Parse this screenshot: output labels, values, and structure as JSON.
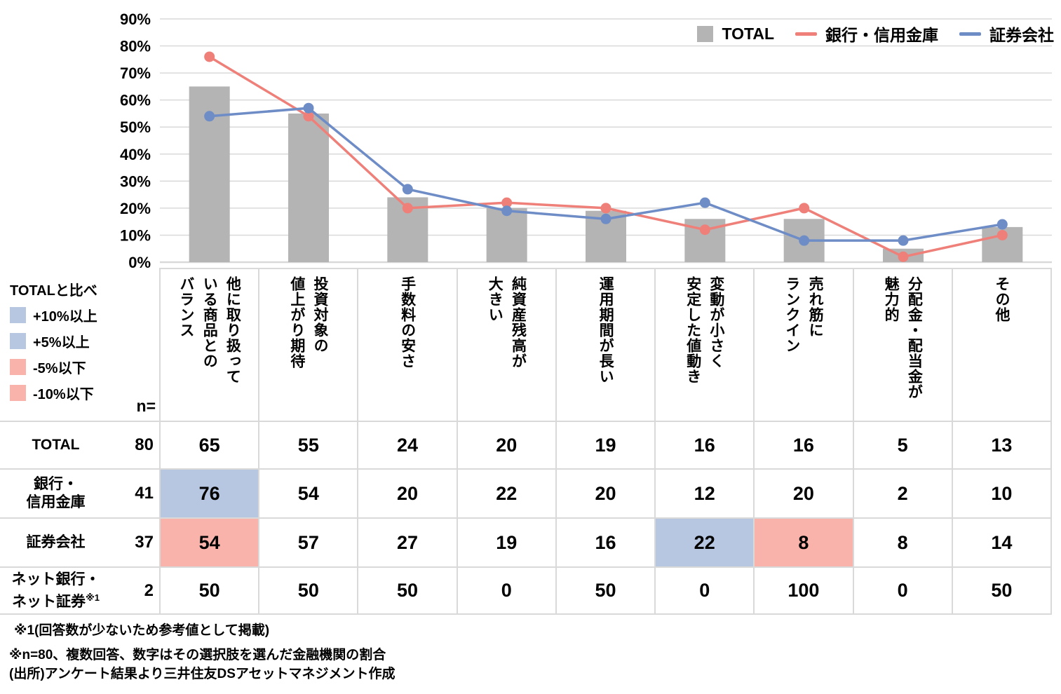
{
  "chart_data": {
    "type": "bar+line",
    "categories": [
      "他に取り扱って\nいる商品との\nバランス",
      "投資対象の\n値上がり期待",
      "手数料の安さ",
      "純資産残高が\n大きい",
      "運用期間が長い",
      "変動が小さく\n安定した値動き",
      "売れ筋に\nランクイン",
      "分配金・配当金が\n魅力的",
      "その他"
    ],
    "series": [
      {
        "name": "TOTAL",
        "type": "bar",
        "color": "#b4b4b4",
        "values": [
          65,
          55,
          24,
          20,
          19,
          16,
          16,
          5,
          13
        ]
      },
      {
        "name": "銀行・信用金庫",
        "type": "line",
        "color": "#ee8079",
        "values": [
          76,
          54,
          20,
          22,
          20,
          12,
          20,
          2,
          10
        ]
      },
      {
        "name": "証券会社",
        "type": "line",
        "color": "#6e8cc6",
        "values": [
          54,
          57,
          27,
          19,
          16,
          22,
          8,
          8,
          14
        ]
      }
    ],
    "ylim": [
      0,
      90
    ],
    "ytick_labels": [
      "0%",
      "10%",
      "20%",
      "30%",
      "40%",
      "50%",
      "60%",
      "70%",
      "80%",
      "90%"
    ],
    "grid": true,
    "gridline_color": "#d9d9d9",
    "legend_position": "top-right"
  },
  "diff_legend": {
    "title": "TOTALと比べ",
    "items": [
      {
        "key": "plus10",
        "label": "+10%以上",
        "color": "#b7c6e1"
      },
      {
        "key": "plus5",
        "label": "+5%以上",
        "color": "#b7c6e1"
      },
      {
        "key": "minus5",
        "label": "-5%以下",
        "color": "#f9b3ab"
      },
      {
        "key": "minus10",
        "label": "-10%以下",
        "color": "#f9b3ab"
      }
    ]
  },
  "table": {
    "n_header": "n=",
    "rows": [
      {
        "label": "TOTAL",
        "n": "80",
        "values": [
          65,
          55,
          24,
          20,
          19,
          16,
          16,
          5,
          13
        ],
        "highlights": []
      },
      {
        "label": "銀行・\n信用金庫",
        "n": "41",
        "values": [
          76,
          54,
          20,
          22,
          20,
          12,
          20,
          2,
          10
        ],
        "highlights": [
          {
            "col": 0,
            "key": "plus10"
          }
        ]
      },
      {
        "label": "証券会社",
        "n": "37",
        "values": [
          54,
          57,
          27,
          19,
          16,
          22,
          8,
          8,
          14
        ],
        "highlights": [
          {
            "col": 0,
            "key": "minus10"
          },
          {
            "col": 5,
            "key": "plus5"
          },
          {
            "col": 6,
            "key": "minus5"
          }
        ]
      },
      {
        "label": "ネット銀行・\nネット証券",
        "label_sup": "※1",
        "n": "2",
        "values": [
          50,
          50,
          50,
          0,
          50,
          0,
          100,
          0,
          50
        ],
        "highlights": []
      }
    ]
  },
  "footnotes": {
    "note1": "※1(回答数が少ないため参考値として掲載)",
    "note2": "※n=80、複数回答、数字はその選択肢を選んだ金融機関の割合\n(出所)アンケート結果より三井住友DSアセットマネジメント作成"
  }
}
